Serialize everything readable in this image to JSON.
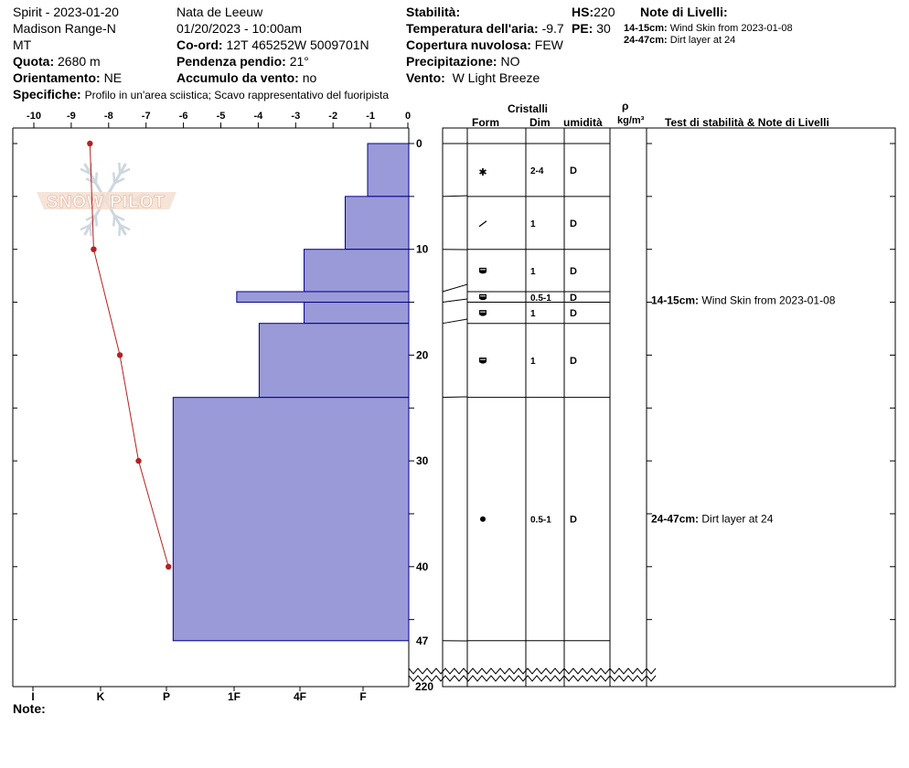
{
  "header": {
    "location": "Spirit - 2023-01-20",
    "range": "Madison Range-N",
    "state": "MT",
    "quota_label": "Quota:",
    "quota_value": "2680 m",
    "orient_label": "Orientamento:",
    "orient_value": "NE",
    "specifiche_label": "Specifiche:",
    "specifiche_value": "Profilo in un'area sciistica; Scavo rappresentativo del fuoripista",
    "observer": "Nata de Leeuw",
    "datetime": "01/20/2023 - 10:00am",
    "coord_label": "Co-ord:",
    "coord_value": "12T 465252W 5009701N",
    "slope_label": "Pendenza pendio:",
    "slope_value": "21°",
    "wind_load_label": "Accumulo da vento:",
    "wind_load_value": "no",
    "stability_label": "Stabilità:",
    "air_temp_label": "Temperatura dell'aria:",
    "air_temp_value": "-9.7",
    "cloud_label": "Copertura nuvolosa:",
    "cloud_value": "FEW",
    "precip_label": "Precipitazione:",
    "precip_value": "NO",
    "wind_label": "Vento:",
    "wind_value": "W Light Breeze",
    "hs_label": "HS:",
    "hs_value": "220",
    "pe_label": "PE:",
    "pe_value": "30",
    "layer_notes_label": "Note di Livelli:",
    "layer_notes": [
      {
        "depth": "14-15cm:",
        "text": "Wind Skin from 2023-01-08"
      },
      {
        "depth": "24-47cm:",
        "text": "Dirt layer at 24"
      }
    ]
  },
  "columns": {
    "crystals": "Cristalli",
    "form": "Form",
    "dim": "Dim",
    "moisture": "umidità",
    "rho": "ρ",
    "density_unit": "kg/m³",
    "stability_notes": "Test di stabilità & Note di Livelli"
  },
  "logo_text": "SNOW PILOT",
  "note_label": "Note:",
  "colors": {
    "hardness_fill": "#9a9ad8",
    "hardness_stroke": "#00008b",
    "temp_line": "#b22222"
  },
  "chart_data": {
    "type": "area",
    "temp_axis_ticks": [
      "-10",
      "-9",
      "-8",
      "-7",
      "-6",
      "-5",
      "-4",
      "-3",
      "-2",
      "-1",
      "0"
    ],
    "temp_range": [
      -10,
      0
    ],
    "hardness_ticks": [
      "I",
      "K",
      "P",
      "1F",
      "4F",
      "F"
    ],
    "depth_ticks": [
      "0",
      "10",
      "20",
      "30",
      "40",
      "47"
    ],
    "depth_bottom_label": "220",
    "depth_range": [
      0,
      47
    ],
    "temperature_profile": [
      {
        "depth": 0,
        "temp": -8.5
      },
      {
        "depth": 10,
        "temp": -8.4
      },
      {
        "depth": 20,
        "temp": -7.7
      },
      {
        "depth": 30,
        "temp": -7.2
      },
      {
        "depth": 40,
        "temp": -6.4
      }
    ],
    "layers": [
      {
        "top": 0,
        "bottom": 5,
        "hardness": "F",
        "hardness_value": 1.1,
        "form": "*",
        "dim": "2-4",
        "moisture": "D"
      },
      {
        "top": 5,
        "bottom": 10,
        "hardness": "F+",
        "hardness_value": 1.7,
        "form": "/",
        "dim": "1",
        "moisture": "D"
      },
      {
        "top": 10,
        "bottom": 14,
        "hardness": "4F",
        "hardness_value": 2.8,
        "form": "cup",
        "dim": "1",
        "moisture": "D"
      },
      {
        "top": 14,
        "bottom": 15,
        "hardness": "1F-",
        "hardness_value": 4.6,
        "form": "cup",
        "dim": "0.5-1",
        "moisture": "D"
      },
      {
        "top": 15,
        "bottom": 17,
        "hardness": "4F",
        "hardness_value": 2.8,
        "form": "cup",
        "dim": "1",
        "moisture": "D"
      },
      {
        "top": 17,
        "bottom": 24,
        "hardness": "1F",
        "hardness_value": 4.0,
        "form": "cup",
        "dim": "1",
        "moisture": "D"
      },
      {
        "top": 24,
        "bottom": 47,
        "hardness": "P",
        "hardness_value": 6.3,
        "form": "dot",
        "dim": "0.5-1",
        "moisture": "D"
      }
    ]
  }
}
